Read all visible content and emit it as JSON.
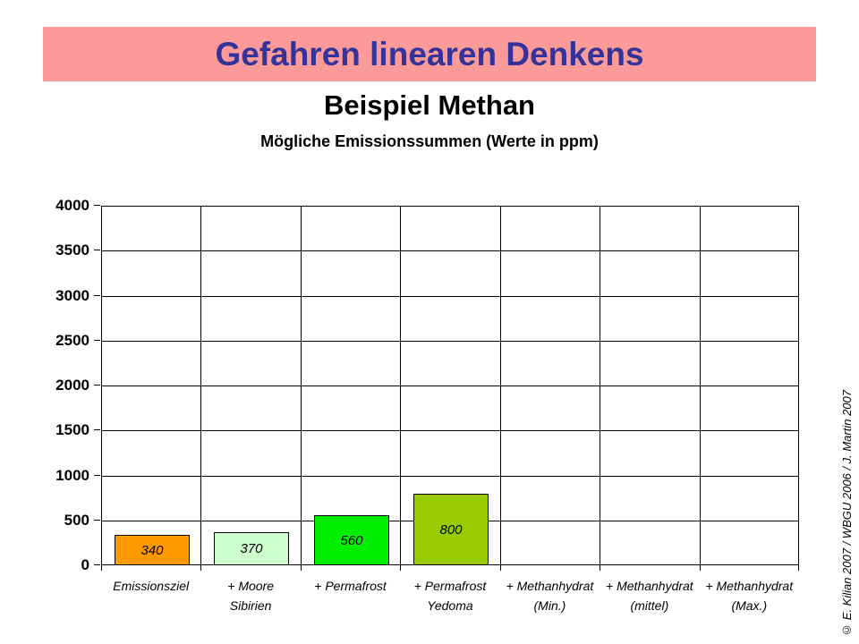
{
  "banner": {
    "title": "Gefahren linearen Denkens",
    "bg_color": "#FC9999",
    "text_color": "#333399"
  },
  "subtitle": "Beispiel Methan",
  "credit": "© E. Kilian 2007 / WBGU 2006 / J. Martin 2007",
  "chart_data": {
    "type": "bar",
    "title": "Mögliche Emissionssummen (Werte in ppm)",
    "categories": [
      "Emissionsziel",
      "+ Moore Sibirien",
      "+ Permafrost",
      "+ Permafrost Yedoma",
      "+ Methanhydrat (Min.)",
      "+ Methanhydrat (mittel)",
      "+ Methanhydrat (Max.)"
    ],
    "category_lines": [
      [
        "Emissionsziel"
      ],
      [
        "+ Moore",
        "Sibirien"
      ],
      [
        "+ Permafrost"
      ],
      [
        "+ Permafrost",
        "Yedoma"
      ],
      [
        "+ Methanhydrat",
        "(Min.)"
      ],
      [
        "+ Methanhydrat",
        "(mittel)"
      ],
      [
        "+ Methanhydrat",
        "(Max.)"
      ]
    ],
    "values": [
      340,
      370,
      560,
      800,
      null,
      null,
      null
    ],
    "value_labels": [
      "340",
      "370",
      "560",
      "800",
      "",
      "",
      ""
    ],
    "bar_colors": [
      "#FF9900",
      "#CCFFCC",
      "#00EE00",
      "#99CC00",
      null,
      null,
      null
    ],
    "ylabel": "",
    "xlabel": "",
    "ylim": [
      0,
      4000
    ],
    "yticks": [
      0,
      500,
      1000,
      1500,
      2000,
      2500,
      3000,
      3500,
      4000
    ],
    "grid": true,
    "legend_position": "none",
    "grid_color": "#000000",
    "bar_border_color": "#000000"
  }
}
